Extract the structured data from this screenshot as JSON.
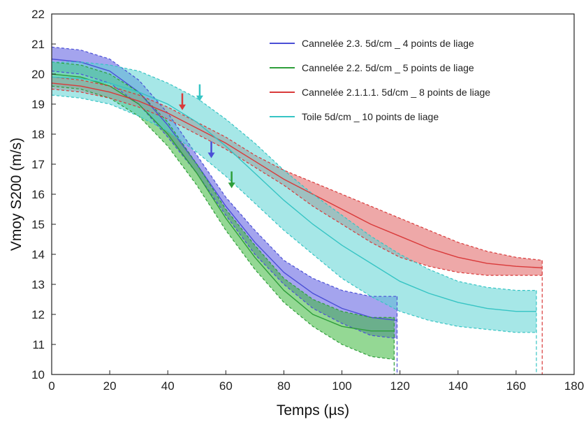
{
  "chart_data": {
    "type": "line",
    "xlabel": "Temps (µs)",
    "ylabel": "Vmoy S200 (m/s)",
    "xlim": [
      0,
      180
    ],
    "ylim": [
      10,
      22
    ],
    "xticks": [
      0,
      20,
      40,
      60,
      80,
      100,
      120,
      140,
      160,
      180
    ],
    "yticks": [
      10,
      11,
      12,
      13,
      14,
      15,
      16,
      17,
      18,
      19,
      20,
      21,
      22
    ],
    "grid": false,
    "legend_position": "top-right",
    "series": [
      {
        "name": "Cannelée 2.3. 5d/cm _ 4 points de liage",
        "color": "#4a4fd6",
        "band_color": "#5a5ae0",
        "x": [
          0,
          10,
          20,
          30,
          40,
          50,
          60,
          70,
          80,
          90,
          100,
          110,
          119
        ],
        "mean": [
          20.5,
          20.4,
          20.1,
          19.4,
          18.3,
          17.0,
          15.6,
          14.4,
          13.4,
          12.7,
          12.2,
          11.9,
          11.8
        ],
        "upper": [
          20.9,
          20.8,
          20.5,
          19.8,
          18.7,
          17.3,
          15.9,
          14.8,
          13.8,
          13.2,
          12.8,
          12.6,
          12.6
        ],
        "lower": [
          20.1,
          20.0,
          19.7,
          19.0,
          17.9,
          16.7,
          15.3,
          14.0,
          13.0,
          12.2,
          11.7,
          11.3,
          11.2
        ],
        "arrow": {
          "x": 55,
          "y": 17.2
        }
      },
      {
        "name": "Cannelée 2.2. 5d/cm _ 5 points de liage",
        "color": "#2e9e3a",
        "band_color": "#3db83d",
        "x": [
          0,
          10,
          20,
          30,
          40,
          50,
          60,
          70,
          80,
          90,
          100,
          110,
          118
        ],
        "mean": [
          20.0,
          19.9,
          19.6,
          19.0,
          18.0,
          16.7,
          15.2,
          13.9,
          12.8,
          12.0,
          11.6,
          11.45,
          11.45
        ],
        "upper": [
          20.4,
          20.3,
          20.0,
          19.4,
          18.4,
          17.0,
          15.5,
          14.3,
          13.2,
          12.5,
          12.1,
          11.9,
          11.9
        ],
        "lower": [
          19.6,
          19.5,
          19.2,
          18.6,
          17.6,
          16.3,
          14.8,
          13.5,
          12.4,
          11.6,
          11.0,
          10.6,
          10.5
        ],
        "arrow": {
          "x": 62,
          "y": 16.2
        }
      },
      {
        "name": "Cannelée 2.1.1.1. 5d/cm _ 8 points de liage",
        "color": "#d93a3a",
        "band_color": "#e06060",
        "x": [
          0,
          10,
          20,
          30,
          40,
          50,
          60,
          70,
          80,
          90,
          100,
          110,
          120,
          130,
          140,
          150,
          160,
          169
        ],
        "mean": [
          19.7,
          19.6,
          19.4,
          19.1,
          18.7,
          18.2,
          17.7,
          17.1,
          16.5,
          16.0,
          15.5,
          15.0,
          14.6,
          14.2,
          13.9,
          13.7,
          13.6,
          13.55
        ],
        "upper": [
          19.9,
          19.8,
          19.6,
          19.3,
          18.9,
          18.4,
          17.9,
          17.3,
          16.8,
          16.4,
          16.0,
          15.6,
          15.2,
          14.8,
          14.4,
          14.1,
          13.9,
          13.8
        ],
        "lower": [
          19.5,
          19.4,
          19.2,
          18.9,
          18.5,
          18.0,
          17.5,
          16.9,
          16.3,
          15.6,
          15.0,
          14.4,
          13.9,
          13.6,
          13.4,
          13.3,
          13.3,
          13.3
        ],
        "arrow": {
          "x": 45,
          "y": 18.8
        }
      },
      {
        "name": "Toile 5d/cm _ 10 points de liage",
        "color": "#36c4c4",
        "band_color": "#5dd3d3",
        "x": [
          0,
          10,
          20,
          30,
          40,
          50,
          60,
          70,
          80,
          90,
          100,
          110,
          120,
          130,
          140,
          150,
          160,
          167
        ],
        "mean": [
          19.9,
          19.85,
          19.7,
          19.4,
          19.0,
          18.4,
          17.6,
          16.7,
          15.8,
          15.0,
          14.3,
          13.7,
          13.1,
          12.7,
          12.4,
          12.2,
          12.1,
          12.1
        ],
        "upper": [
          20.4,
          20.4,
          20.3,
          20.1,
          19.7,
          19.2,
          18.5,
          17.7,
          16.8,
          16.0,
          15.3,
          14.6,
          14.0,
          13.5,
          13.1,
          12.9,
          12.8,
          12.8
        ],
        "lower": [
          19.3,
          19.2,
          19.0,
          18.6,
          18.1,
          17.4,
          16.6,
          15.7,
          14.8,
          14.0,
          13.2,
          12.6,
          12.1,
          11.8,
          11.6,
          11.5,
          11.4,
          11.4
        ],
        "arrow": {
          "x": 51,
          "y": 19.1
        }
      }
    ]
  }
}
